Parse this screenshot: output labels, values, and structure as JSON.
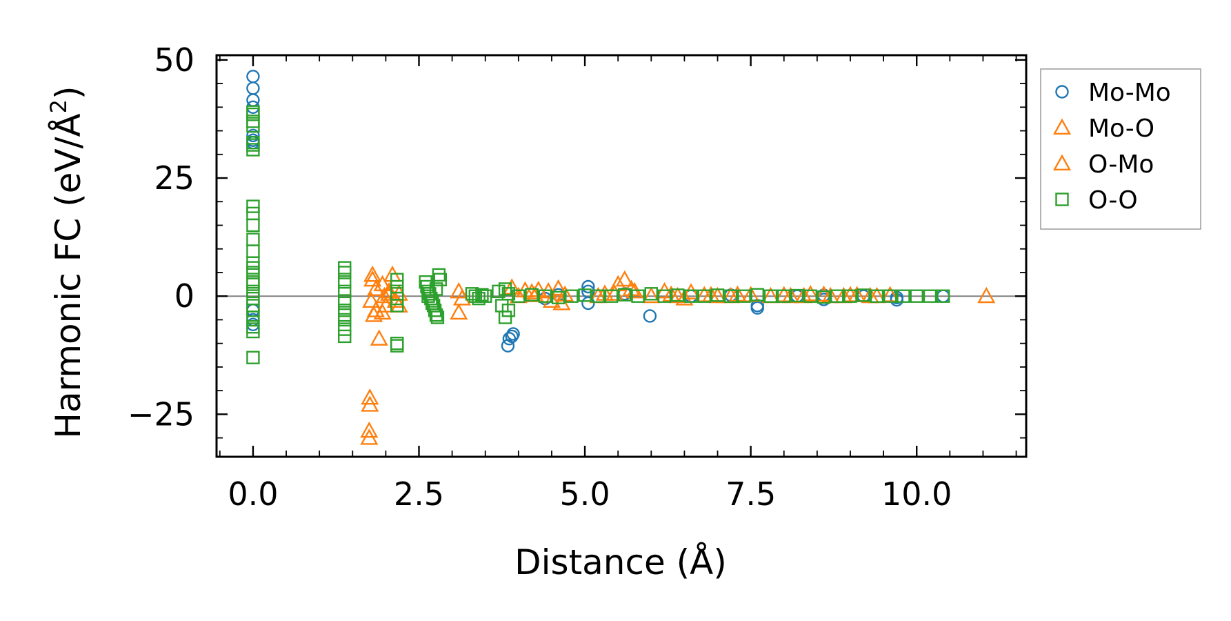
{
  "chart_data": {
    "type": "scatter",
    "xlabel": "Distance (Å)",
    "ylabel_main": "Harmonic FC (eV/Å",
    "ylabel_sup": "2",
    "ylabel_close": ")",
    "xlim": [
      -0.55,
      11.65
    ],
    "ylim": [
      -34,
      51
    ],
    "xticks": [
      0.0,
      2.5,
      5.0,
      7.5,
      10.0
    ],
    "xtick_labels": [
      "0.0",
      "2.5",
      "5.0",
      "7.5",
      "10.0"
    ],
    "yticks": [
      -25,
      0,
      25,
      50
    ],
    "ytick_labels": [
      "−25",
      "0",
      "25",
      "50"
    ],
    "zero_line": 0,
    "legend_position": "outside-right",
    "colors": {
      "Mo-Mo": "#1f77b4",
      "Mo-O": "#ff7f0e",
      "O-Mo": "#ff7f0e",
      "O-O": "#2ca02c"
    },
    "series": [
      {
        "name": "Mo-Mo",
        "marker": "circle",
        "x": [
          0,
          0,
          0,
          0,
          0,
          0,
          0,
          0,
          0,
          0,
          3.84,
          3.86,
          3.9,
          3.92,
          4.4,
          4.6,
          5.05,
          5.05,
          5.05,
          5.6,
          5.98,
          6.6,
          7.2,
          7.6,
          7.6,
          8.2,
          8.6,
          8.6,
          9.2,
          9.7,
          9.7,
          10.4
        ],
        "y": [
          46.5,
          44,
          41.5,
          40,
          34,
          33,
          32.5,
          -3,
          -5,
          -6,
          -10.5,
          -9,
          -8.5,
          -8,
          -0.5,
          0.3,
          2,
          1,
          -1.5,
          0.5,
          -4.2,
          0,
          0.2,
          -2,
          -2.5,
          0,
          -0.7,
          0.2,
          0,
          -0.3,
          -0.8,
          0
        ]
      },
      {
        "name": "Mo-O",
        "marker": "triangle",
        "x": [
          1.75,
          1.75,
          1.76,
          1.76,
          1.8,
          1.8,
          1.82,
          1.85,
          1.9,
          1.95,
          1.98,
          2.0,
          2.05,
          2.1,
          2.15,
          2.2,
          3.1,
          3.1,
          3.15,
          3.9,
          4.1,
          4.2,
          4.3,
          4.45,
          4.6,
          4.7,
          5.3,
          5.5,
          5.6,
          5.7,
          6.2,
          6.4,
          6.6,
          6.8,
          7.0,
          7.3,
          8.1,
          8.4,
          8.7,
          9.0,
          9.3,
          9.6,
          11.05
        ],
        "y": [
          -30,
          -28.5,
          -23,
          -21.5,
          4.5,
          3.5,
          -4,
          -3,
          -9,
          2.5,
          0,
          -2,
          1,
          4.5,
          -1,
          0.5,
          -3.5,
          1,
          -0.5,
          1.8,
          1.2,
          0.8,
          1.3,
          1.0,
          1.6,
          0.3,
          0.5,
          2.5,
          3.5,
          1.5,
          1,
          0,
          0.8,
          0.2,
          0,
          0.3,
          0,
          0.4,
          0,
          0.2,
          0,
          0.2,
          0
        ]
      },
      {
        "name": "O-Mo",
        "marker": "triangle",
        "x": [
          1.78,
          1.85,
          1.95,
          2.05,
          2.2,
          4.0,
          4.25,
          4.5,
          4.65,
          5.2,
          5.45,
          5.75,
          6.0,
          6.3,
          6.5,
          6.9,
          7.2,
          7.5,
          7.8,
          8.0,
          8.3,
          8.6,
          8.9,
          9.1,
          9.4
        ],
        "y": [
          -1,
          1.5,
          -3.5,
          0.5,
          -2,
          0,
          0.2,
          -1,
          -1.5,
          0,
          0.5,
          1,
          0,
          0.3,
          -0.5,
          0.2,
          0,
          0.2,
          0,
          0.2,
          0,
          0.3,
          0,
          0.2,
          0
        ]
      },
      {
        "name": "O-O",
        "marker": "square",
        "x": [
          0,
          0,
          0,
          0,
          0,
          0,
          0,
          0,
          0,
          0,
          0,
          0,
          0,
          0,
          0,
          0,
          0,
          0,
          0,
          0,
          0,
          0,
          0,
          0,
          0,
          1.38,
          1.38,
          1.38,
          1.38,
          1.38,
          1.38,
          1.38,
          1.38,
          1.38,
          1.38,
          2.17,
          2.17,
          2.17,
          2.17,
          2.17,
          2.17,
          2.17,
          2.6,
          2.62,
          2.64,
          2.66,
          2.68,
          2.7,
          2.72,
          2.74,
          2.76,
          2.78,
          2.8,
          2.82,
          2.64,
          2.7,
          2.76,
          3.3,
          3.35,
          3.4,
          3.45,
          3.5,
          3.7,
          3.75,
          3.8,
          3.85,
          3.8,
          3.85,
          4.0,
          4.2,
          4.4,
          4.6,
          4.8,
          5.0,
          5.2,
          5.4,
          5.6,
          5.8,
          6.0,
          6.2,
          6.4,
          6.6,
          6.8,
          7.0,
          7.2,
          7.4,
          7.6,
          7.8,
          8.0,
          8.2,
          8.4,
          8.6,
          8.8,
          9.0,
          9.2,
          9.4,
          9.6,
          9.8,
          10.0,
          10.2,
          10.4
        ],
        "y": [
          39,
          38.5,
          37,
          36,
          32.5,
          32,
          31,
          19,
          17.5,
          15,
          12,
          9.5,
          7,
          5,
          2.5,
          1,
          -0.5,
          -2,
          -3,
          -4.5,
          -6.5,
          -7.5,
          -13,
          3,
          6,
          6,
          5,
          3,
          1,
          -1,
          -3,
          -4,
          -5,
          -7,
          -8.5,
          3.5,
          2,
          0.5,
          -0.5,
          -2,
          -10.5,
          -10,
          3,
          2,
          1,
          0.5,
          -0.5,
          -1,
          -2,
          -3,
          -4,
          -4.5,
          4.5,
          3.5,
          0,
          -1.5,
          1.5,
          0.5,
          0,
          -0.5,
          0.3,
          0,
          1,
          -2,
          -4.5,
          -3,
          1.5,
          0.5,
          0,
          0.3,
          0,
          -0.3,
          0,
          0.2,
          0,
          0,
          0.3,
          0,
          0.5,
          0,
          0.2,
          0,
          0,
          0.2,
          0,
          0,
          0.3,
          0,
          0,
          0.1,
          0,
          -0.2,
          0,
          0,
          0.2,
          0,
          0,
          0,
          0,
          0,
          0
        ]
      }
    ]
  }
}
